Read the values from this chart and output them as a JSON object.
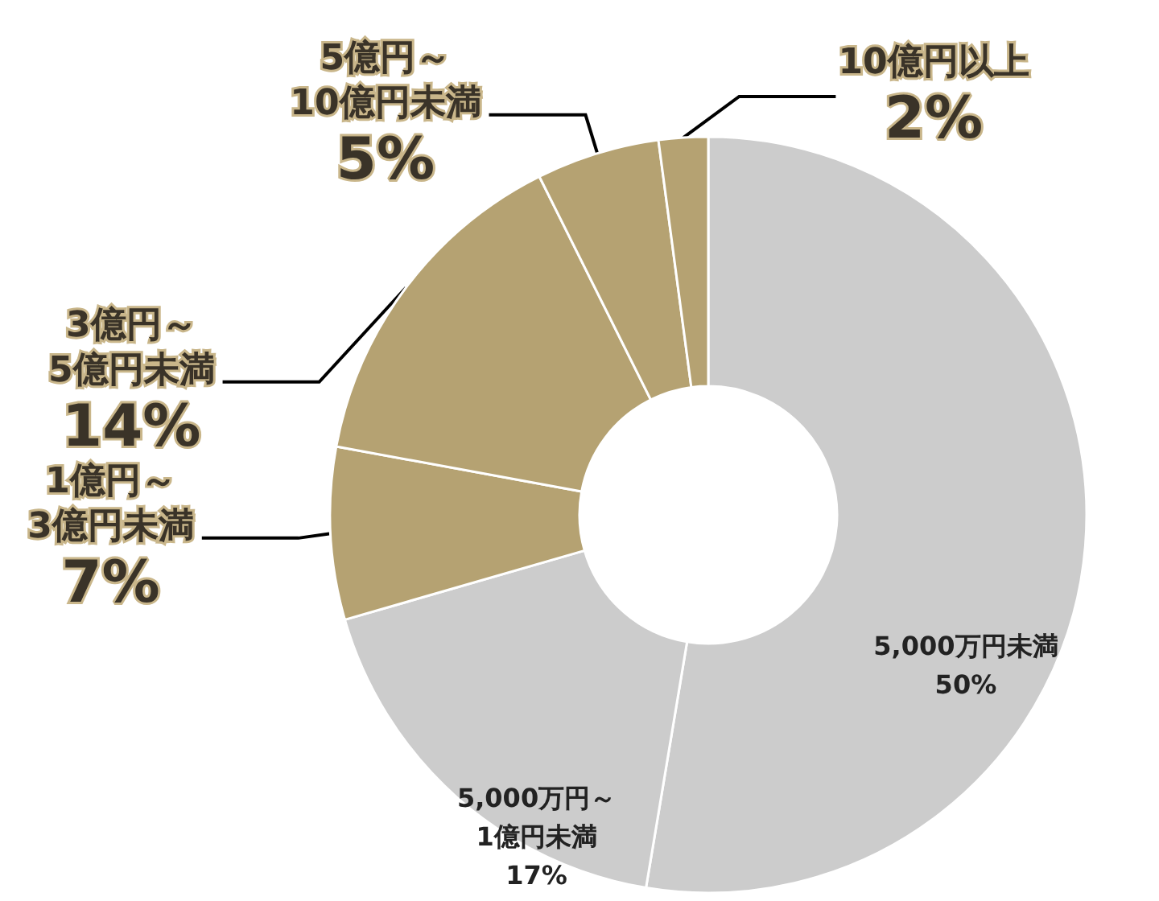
{
  "chart_data": {
    "type": "donut",
    "categories": [
      "5,000万円未満",
      "5,000万円～\n1億円未満",
      "1億円～\n3億円未満",
      "3億円～\n5億円未満",
      "5億円～\n10億円未満",
      "10億円以上"
    ],
    "values": [
      50,
      17,
      7,
      14,
      5,
      2
    ],
    "colors": [
      "#cccccc",
      "#cccccc",
      "#b5a272",
      "#b5a272",
      "#b5a272",
      "#b5a272"
    ],
    "value_labels": [
      "50%",
      "17%",
      "7%",
      "14%",
      "5%",
      "2%"
    ],
    "legend": false
  }
}
